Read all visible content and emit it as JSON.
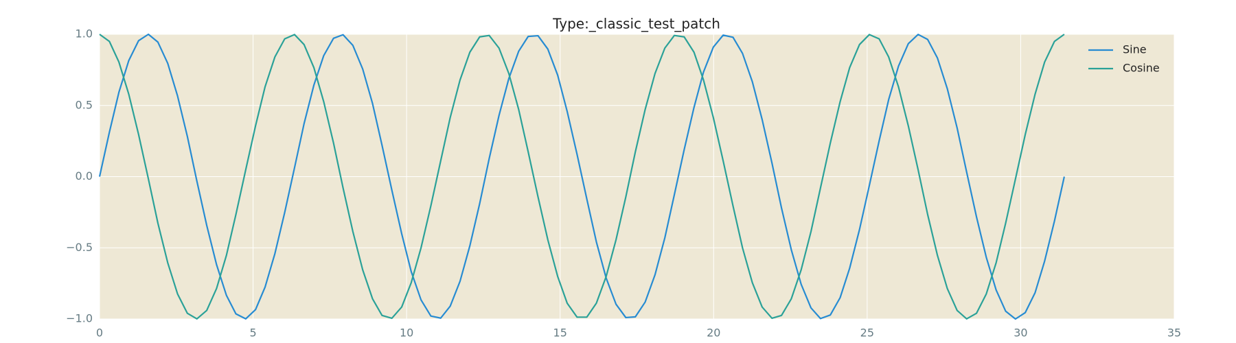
{
  "chart_data": {
    "type": "line",
    "title": "Type:_classic_test_patch",
    "x": [
      0,
      0.32,
      0.63,
      0.95,
      1.27,
      1.59,
      1.9,
      2.22,
      2.54,
      2.86,
      3.17,
      3.49,
      3.81,
      4.13,
      4.44,
      4.76,
      5.08,
      5.39,
      5.71,
      6.03,
      6.35,
      6.66,
      6.98,
      7.3,
      7.62,
      7.93,
      8.25,
      8.57,
      8.89,
      9.2,
      9.52,
      9.84,
      10.15,
      10.47,
      10.79,
      11.11,
      11.42,
      11.74,
      12.06,
      12.38,
      12.69,
      13.01,
      13.33,
      13.65,
      13.96,
      14.28,
      14.6,
      14.92,
      15.23,
      15.55,
      15.87,
      16.18,
      16.5,
      16.82,
      17.14,
      17.45,
      17.77,
      18.09,
      18.41,
      18.72,
      19.04,
      19.36,
      19.67,
      19.99,
      20.31,
      20.63,
      20.94,
      21.26,
      21.58,
      21.9,
      22.21,
      22.53,
      22.85,
      23.17,
      23.48,
      23.8,
      24.12,
      24.43,
      24.75,
      25.07,
      25.39,
      25.7,
      26.02,
      26.34,
      26.66,
      26.97,
      27.29,
      27.61,
      27.93,
      28.24,
      28.56,
      28.88,
      29.2,
      29.51,
      29.83,
      30.15,
      30.47,
      30.78,
      31.1,
      31.42
    ],
    "series": [
      {
        "name": "Sine",
        "color": "#268bd2",
        "values": [
          0,
          0.312,
          0.593,
          0.815,
          0.955,
          1.0,
          0.945,
          0.796,
          0.567,
          0.282,
          -0.032,
          -0.342,
          -0.618,
          -0.833,
          -0.964,
          -0.999,
          -0.934,
          -0.776,
          -0.541,
          -0.251,
          0.063,
          0.372,
          0.643,
          0.85,
          0.972,
          0.997,
          0.922,
          0.756,
          0.514,
          0.22,
          -0.095,
          -0.401,
          -0.667,
          -0.866,
          -0.979,
          -0.994,
          -0.91,
          -0.735,
          -0.486,
          -0.189,
          0.127,
          0.43,
          0.69,
          0.881,
          0.985,
          0.99,
          0.896,
          0.713,
          0.458,
          0.158,
          -0.158,
          -0.458,
          -0.713,
          -0.896,
          -0.99,
          -0.985,
          -0.881,
          -0.69,
          -0.43,
          -0.127,
          0.189,
          0.486,
          0.735,
          0.91,
          0.994,
          0.979,
          0.866,
          0.667,
          0.401,
          0.095,
          -0.22,
          -0.514,
          -0.756,
          -0.922,
          -0.997,
          -0.972,
          -0.85,
          -0.643,
          -0.372,
          -0.063,
          0.251,
          0.541,
          0.776,
          0.934,
          0.999,
          0.964,
          0.833,
          0.618,
          0.342,
          0.032,
          -0.282,
          -0.567,
          -0.796,
          -0.945,
          -1.0,
          -0.955,
          -0.815,
          -0.593,
          -0.312,
          0
        ]
      },
      {
        "name": "Cosine",
        "color": "#2aa198",
        "values": [
          1,
          0.95,
          0.805,
          0.58,
          0.297,
          -0.016,
          -0.327,
          -0.605,
          -0.824,
          -0.96,
          -0.999,
          -0.94,
          -0.786,
          -0.554,
          -0.266,
          0.048,
          0.357,
          0.631,
          0.841,
          0.968,
          0.998,
          0.928,
          0.766,
          0.527,
          0.236,
          -0.079,
          -0.386,
          -0.655,
          -0.858,
          -0.975,
          -0.995,
          -0.916,
          -0.745,
          -0.5,
          -0.205,
          0.111,
          0.415,
          0.679,
          0.874,
          0.982,
          0.992,
          0.903,
          0.724,
          0.472,
          0.174,
          -0.142,
          -0.444,
          -0.701,
          -0.889,
          -0.987,
          -0.987,
          -0.889,
          -0.701,
          -0.444,
          -0.142,
          0.174,
          0.472,
          0.724,
          0.903,
          0.992,
          0.982,
          0.874,
          0.679,
          0.415,
          0.111,
          -0.205,
          -0.5,
          -0.745,
          -0.916,
          -0.995,
          -0.975,
          -0.858,
          -0.655,
          -0.386,
          -0.079,
          0.236,
          0.527,
          0.766,
          0.928,
          0.998,
          0.968,
          0.841,
          0.631,
          0.357,
          0.048,
          -0.266,
          -0.554,
          -0.786,
          -0.94,
          -0.999,
          -0.96,
          -0.824,
          -0.605,
          -0.327,
          -0.016,
          0.297,
          0.58,
          0.805,
          0.95,
          1
        ]
      }
    ],
    "xlim": [
      0,
      35
    ],
    "xticks": [
      0,
      5,
      10,
      15,
      20,
      25,
      30,
      35
    ],
    "ylim": [
      -1,
      1
    ],
    "yticks": [
      {
        "value": -1,
        "label": "−1.0"
      },
      {
        "value": -0.5,
        "label": "−0.5"
      },
      {
        "value": 0,
        "label": "0.0"
      },
      {
        "value": 0.5,
        "label": "0.5"
      },
      {
        "value": 1,
        "label": "1.0"
      }
    ],
    "grid": true,
    "legend": "upper right",
    "background": "#eee8d5"
  }
}
